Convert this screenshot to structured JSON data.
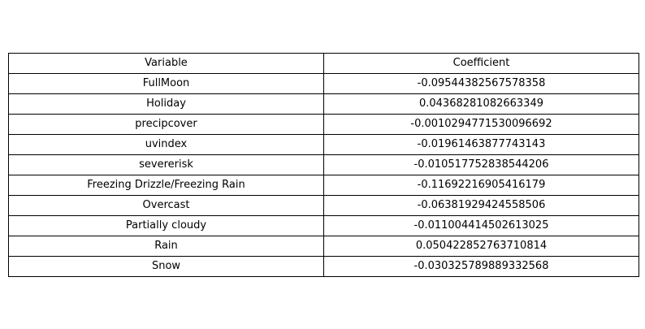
{
  "chart_data": {
    "type": "table",
    "columns": [
      "Variable",
      "Coefficient"
    ],
    "rows": [
      [
        "FullMoon",
        "-0.09544382567578358"
      ],
      [
        "Holiday",
        "0.04368281082663349"
      ],
      [
        "precipcover",
        "-0.0010294771530096692"
      ],
      [
        "uvindex",
        "-0.01961463877743143"
      ],
      [
        "severerisk",
        "-0.010517752838544206"
      ],
      [
        "Freezing Drizzle/Freezing Rain",
        "-0.11692216905416179"
      ],
      [
        "Overcast",
        "-0.06381929424558506"
      ],
      [
        "Partially cloudy",
        "-0.011004414502613025"
      ],
      [
        "Rain",
        "0.050422852763710814"
      ],
      [
        "Snow",
        "-0.030325789889332568"
      ]
    ]
  }
}
